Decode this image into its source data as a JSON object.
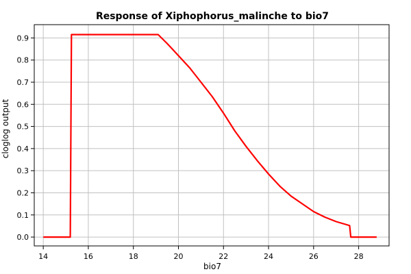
{
  "chart_data": {
    "type": "line",
    "title": "Response of Xiphophorus_malinche to bio7",
    "xlabel": "bio7",
    "ylabel": "cloglog output",
    "xlim": [
      13.6,
      29.35
    ],
    "ylim": [
      -0.04,
      0.96
    ],
    "xticks": [
      14,
      16,
      18,
      20,
      22,
      24,
      26,
      28
    ],
    "yticks": [
      0.0,
      0.1,
      0.2,
      0.3,
      0.4,
      0.5,
      0.6,
      0.7,
      0.8,
      0.9
    ],
    "ytick_labels": [
      "0.0",
      "0.1",
      "0.2",
      "0.3",
      "0.4",
      "0.5",
      "0.6",
      "0.7",
      "0.8",
      "0.9"
    ],
    "grid": true,
    "legend": "none",
    "series": [
      {
        "color": "#ff0000",
        "x": [
          14.0,
          15.2,
          15.25,
          16.0,
          17.0,
          18.0,
          19.1,
          19.5,
          20.0,
          20.5,
          21.0,
          21.5,
          22.0,
          22.5,
          23.0,
          23.5,
          24.0,
          24.5,
          25.0,
          25.5,
          26.0,
          26.5,
          27.0,
          27.6,
          27.65,
          28.0,
          28.8
        ],
        "y": [
          0.0,
          0.0,
          0.915,
          0.915,
          0.915,
          0.915,
          0.915,
          0.875,
          0.82,
          0.765,
          0.7,
          0.635,
          0.56,
          0.48,
          0.41,
          0.345,
          0.285,
          0.23,
          0.185,
          0.15,
          0.115,
          0.09,
          0.07,
          0.052,
          0.0,
          0.0,
          0.0
        ]
      }
    ]
  }
}
